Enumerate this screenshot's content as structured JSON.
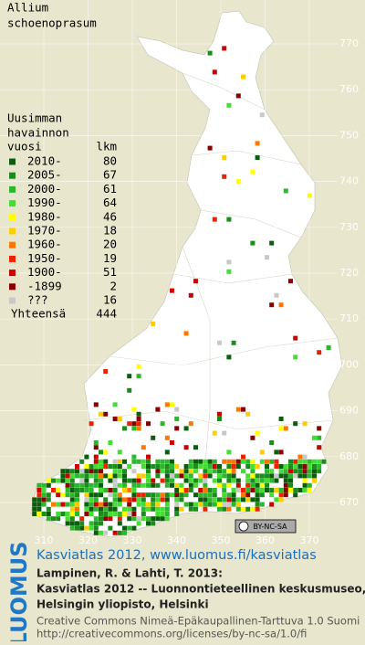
{
  "title": [
    "Allium",
    "schoenoprasum"
  ],
  "legend": {
    "heading": [
      "Uusimman",
      "havainnon"
    ],
    "col_period": "vuosi",
    "col_count": "lkm",
    "rows": [
      {
        "label": "2010-",
        "count": 80,
        "color": "#0b5e0b"
      },
      {
        "label": "2005-",
        "count": 67,
        "color": "#1c8c1c"
      },
      {
        "label": "2000-",
        "count": 61,
        "color": "#2cb82c"
      },
      {
        "label": "1990-",
        "count": 64,
        "color": "#44dd33"
      },
      {
        "label": "1980-",
        "count": 46,
        "color": "#ffff00"
      },
      {
        "label": "1970-",
        "count": 18,
        "color": "#ffcc00"
      },
      {
        "label": "1960-",
        "count": 20,
        "color": "#ff7700"
      },
      {
        "label": "1950-",
        "count": 19,
        "color": "#ee2200"
      },
      {
        "label": "1900-",
        "count": 51,
        "color": "#cc0000"
      },
      {
        "label": "-1899",
        "count": 2,
        "color": "#880000"
      },
      {
        "label": "???",
        "count": 16,
        "color": "#c8c8c8"
      }
    ],
    "total": {
      "label": "Yhteensä",
      "count": 444
    }
  },
  "grid": {
    "x_labels": [
      "310",
      "320",
      "330",
      "340",
      "350",
      "360",
      "370"
    ],
    "y_labels": [
      "670",
      "680",
      "690",
      "700",
      "710",
      "720",
      "730",
      "740",
      "750",
      "760",
      "770"
    ]
  },
  "license_badge": "BY-NC-SA",
  "footer": {
    "logo": "LUOMUS",
    "link": "Kasviatlas 2012, www.luomus.fi/kasviatlas",
    "citation": [
      "Lampinen, R. & Lahti, T. 2013:",
      "Kasviatlas 2012 -- Luonnontieteellinen keskusmuseo,",
      "Helsingin yliopisto, Helsinki"
    ],
    "license": [
      "Creative Commons Nimeä-Epäkaupallinen-Tarttuva 1.0 Suomi",
      "http://creativecommons.org/licenses/by-nc-sa/1.0/fi"
    ]
  }
}
